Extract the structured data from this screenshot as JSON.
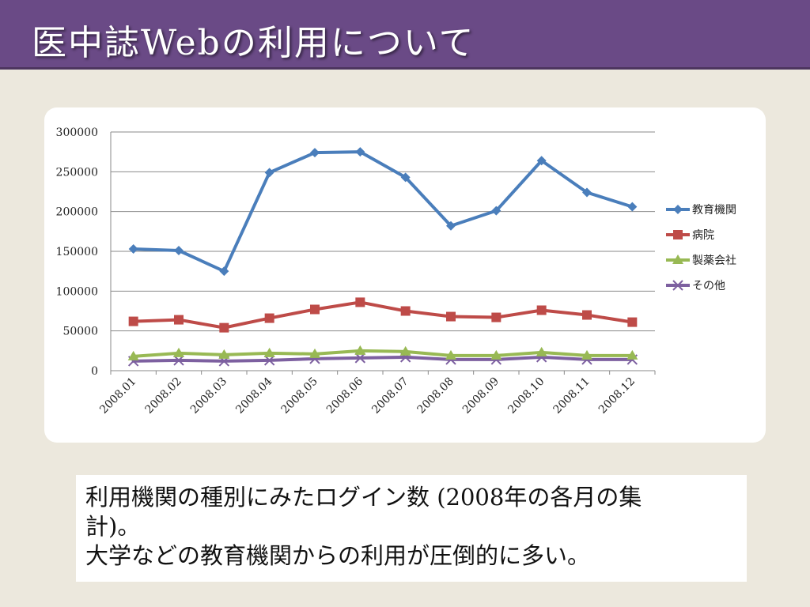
{
  "slide": {
    "title": "医中誌Webの利用について"
  },
  "caption": {
    "lines": [
      "利用機関の種別にみたログイン数 (2008年の各月の集",
      "計)。",
      "大学などの教育機関からの利用が圧倒的に多い。"
    ]
  },
  "chart_data": {
    "type": "line",
    "title": "",
    "xlabel": "",
    "ylabel": "",
    "categories": [
      "2008.01",
      "2008.02",
      "2008.03",
      "2008.04",
      "2008.05",
      "2008.06",
      "2008.07",
      "2008.08",
      "2008.09",
      "2008.10",
      "2008.11",
      "2008.12"
    ],
    "ylim": [
      0,
      300000
    ],
    "yticks": [
      "0",
      "50000",
      "100000",
      "150000",
      "200000",
      "250000",
      "300000"
    ],
    "grid": true,
    "legend_position": "right",
    "series": [
      {
        "name": "教育機関",
        "color": "#4a7ebb",
        "marker": "diamond",
        "values": [
          153000,
          151000,
          125000,
          249000,
          274000,
          275000,
          243000,
          182000,
          201000,
          264000,
          224000,
          206000
        ]
      },
      {
        "name": "病院",
        "color": "#be4b48",
        "marker": "square",
        "values": [
          62000,
          64000,
          54000,
          66000,
          77000,
          86000,
          75000,
          68000,
          67000,
          76000,
          70000,
          61000
        ]
      },
      {
        "name": "製薬会社",
        "color": "#98b954",
        "marker": "triangle",
        "values": [
          18000,
          22000,
          20000,
          22000,
          21000,
          25000,
          24000,
          19000,
          19000,
          23000,
          19000,
          19000
        ]
      },
      {
        "name": "その他",
        "color": "#7d60a0",
        "marker": "x",
        "values": [
          12000,
          13000,
          12000,
          13000,
          15000,
          16000,
          17000,
          14000,
          14000,
          17000,
          14000,
          14000
        ]
      }
    ]
  }
}
